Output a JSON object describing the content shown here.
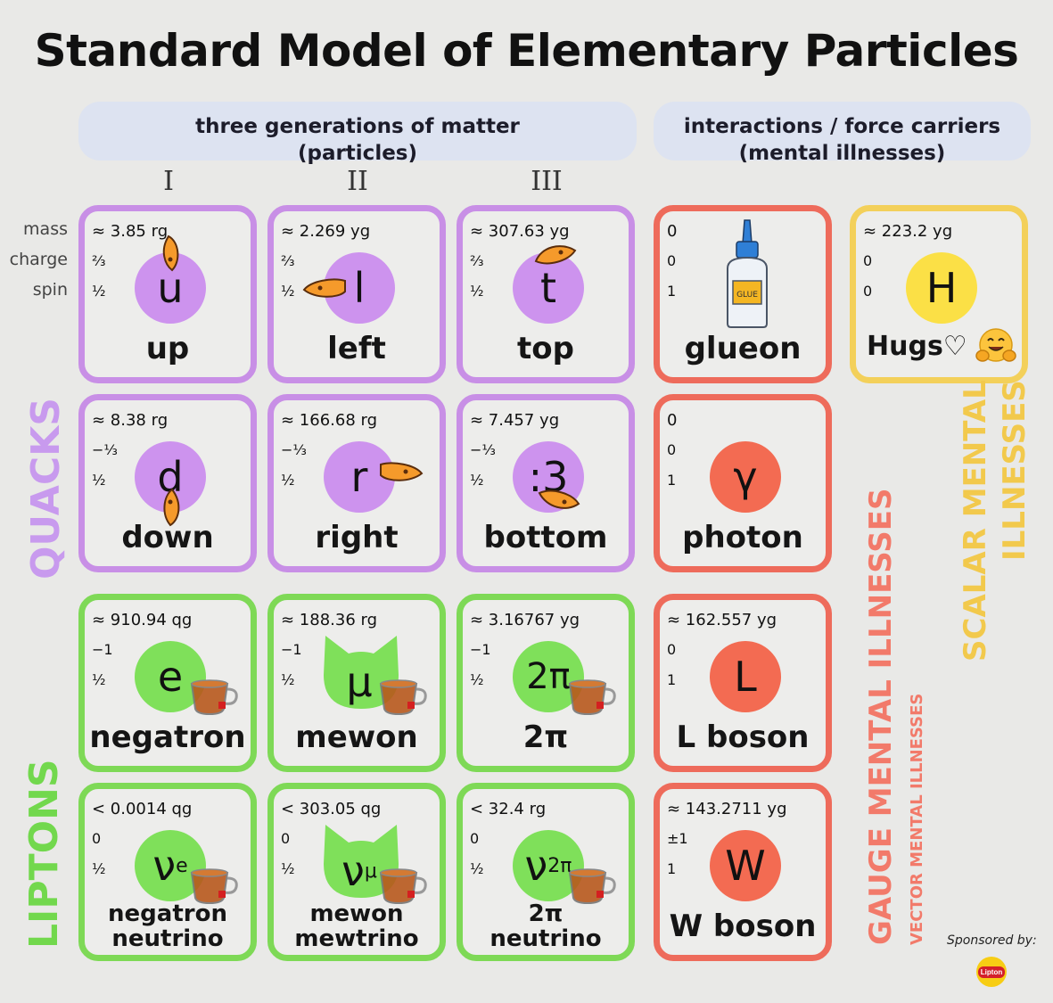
{
  "title": "Standard Model of Elementary Particles",
  "headers": {
    "matter_line1": "three generations of matter",
    "matter_line2": "(particles)",
    "forces_line1": "interactions / force carriers",
    "forces_line2": "(mental illnesses)"
  },
  "generations": [
    "I",
    "II",
    "III"
  ],
  "row_labels": {
    "mass": "mass",
    "charge": "charge",
    "spin": "spin"
  },
  "side_labels": {
    "quacks": "QUACKS",
    "liptons": "LIPTONS",
    "gauge": "GAUGE MENTAL ILLNESSES",
    "vector": "VECTOR MENTAL ILLNESSES",
    "scalar_line1": "SCALAR MENTAL",
    "scalar_line2": "ILLNESSES"
  },
  "colors": {
    "quark": "#c88fe6",
    "lepton": "#7ed956",
    "gauge": "#ee6b5b",
    "scalar": "#f3d05a"
  },
  "particles": {
    "up": {
      "mass": "≈ 3.85 rg",
      "charge": "⅔",
      "spin": "½",
      "symbol": "u",
      "name": "up"
    },
    "left": {
      "mass": "≈ 2.269 yg",
      "charge": "⅔",
      "spin": "½",
      "symbol": "l",
      "name": "left"
    },
    "top": {
      "mass": "≈ 307.63 yg",
      "charge": "⅔",
      "spin": "½",
      "symbol": "t",
      "name": "top"
    },
    "glueon": {
      "mass": "0",
      "charge": "0",
      "spin": "1",
      "name": "glueon",
      "icon": "glue-bottle-icon",
      "label": "GLUE"
    },
    "higgs": {
      "mass": "≈ 223.2 yg",
      "charge": "0",
      "spin": "0",
      "symbol": "H",
      "name": "Hugs♡",
      "icon": "hugging-face-icon"
    },
    "down": {
      "mass": "≈ 8.38 rg",
      "charge": "−⅓",
      "spin": "½",
      "symbol": "d",
      "name": "down"
    },
    "right": {
      "mass": "≈ 166.68 rg",
      "charge": "−⅓",
      "spin": "½",
      "symbol": "r",
      "name": "right"
    },
    "bottom": {
      "mass": "≈ 7.457 yg",
      "charge": "−⅓",
      "spin": "½",
      "symbol": ":3",
      "name": "bottom"
    },
    "photon": {
      "mass": "0",
      "charge": "0",
      "spin": "1",
      "symbol": "γ",
      "name": "photon"
    },
    "negatron": {
      "mass": "≈ 910.94 qg",
      "charge": "−1",
      "spin": "½",
      "symbol": "e",
      "name": "negatron"
    },
    "mewon": {
      "mass": "≈ 188.36 rg",
      "charge": "−1",
      "spin": "½",
      "symbol": "μ",
      "name": "mewon"
    },
    "twopi": {
      "mass": "≈ 3.16767 yg",
      "charge": "−1",
      "spin": "½",
      "symbol": "2π",
      "name": "2π"
    },
    "lboson": {
      "mass": "≈ 162.557 yg",
      "charge": "0",
      "spin": "1",
      "symbol": "L",
      "name": "L boson"
    },
    "nu_e": {
      "mass": "< 0.0014 qg",
      "charge": "0",
      "spin": "½",
      "symbol": "ν",
      "sub": "e",
      "name1": "negatron",
      "name2": "neutrino"
    },
    "nu_mu": {
      "mass": "< 303.05 qg",
      "charge": "0",
      "spin": "½",
      "symbol": "ν",
      "sub": "μ",
      "name1": "mewon",
      "name2": "mewtrino"
    },
    "nu_2pi": {
      "mass": "< 32.4 rg",
      "charge": "0",
      "spin": "½",
      "symbol": "ν",
      "sub": "2π",
      "name1": "2π",
      "name2": "neutrino"
    },
    "wboson": {
      "mass": "≈ 143.2711 yg",
      "charge": "±1",
      "spin": "1",
      "symbol": "W",
      "name": "W boson"
    }
  },
  "sponsor": {
    "text": "Sponsored by:",
    "logo_text": "Lipton"
  }
}
